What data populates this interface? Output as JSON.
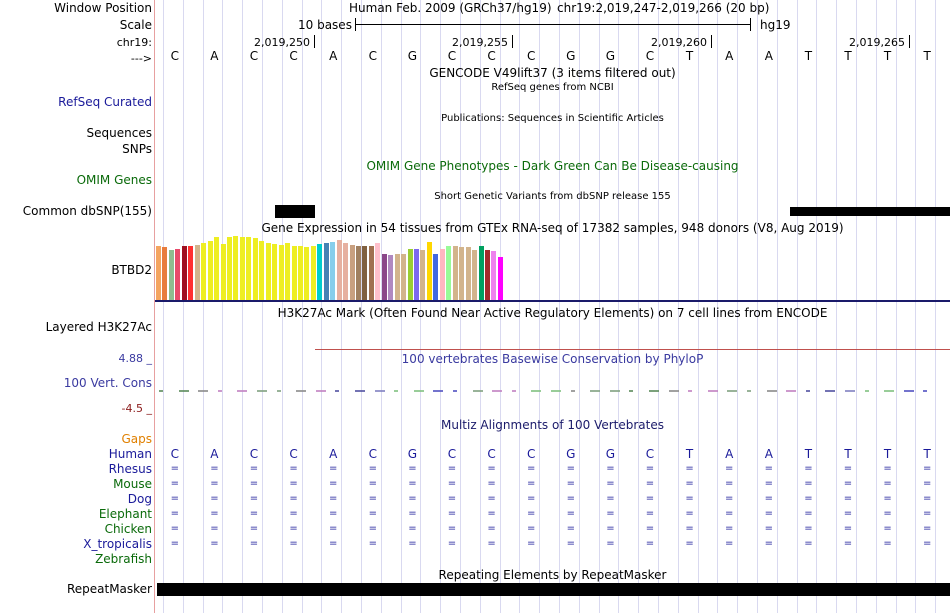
{
  "labels": {
    "window_position": "Window Position",
    "scale": "Scale",
    "chrom": "chr19:",
    "arrow": "--->",
    "refseq": "RefSeq Curated",
    "sequences": "Sequences",
    "snps": "SNPs",
    "omim": "OMIM Genes",
    "common_dbsnp": "Common dbSNP(155)",
    "btbd2": "BTBD2",
    "layered": "Layered H3K27Ac",
    "cons_max": "4.88 _",
    "cons_name": "100 Vert. Cons",
    "cons_min": "-4.5 _",
    "gaps": "Gaps",
    "repeatmasker": "RepeatMasker"
  },
  "header": {
    "assembly": "Human Feb. 2009 (GRCh37/hg19)",
    "position": "chr19:2,019,247-2,019,266 (20 bp)",
    "scale_text": "10 bases",
    "scale_db": "hg19",
    "coords": [
      "2,019,250",
      "2,019,255",
      "2,019,260",
      "2,019,265"
    ]
  },
  "bases": [
    "C",
    "A",
    "C",
    "C",
    "A",
    "C",
    "G",
    "C",
    "C",
    "C",
    "G",
    "G",
    "C",
    "T",
    "A",
    "A",
    "T",
    "T",
    "T",
    "T"
  ],
  "tracks": {
    "gencode": "GENCODE V49lift37 (3 items filtered out)",
    "refseq_desc": "RefSeq genes from NCBI",
    "pubs": "Publications: Sequences in Scientific Articles",
    "omim_desc": "OMIM Gene Phenotypes - Dark Green Can Be Disease-causing",
    "dbsnp_desc": "Short Genetic Variants from dbSNP release 155",
    "gtex": "Gene Expression in 54 tissues from GTEx RNA-seq of 17382 samples, 948 donors (V8, Aug 2019)",
    "h3k27ac": "H3K27Ac Mark (Often Found Near Active Regulatory Elements) on 7 cell lines from ENCODE",
    "phylop": "100 vertebrates Basewise Conservation by PhyloP",
    "multiz": "Multiz Alignments of 100 Vertebrates",
    "repeat": "Repeating Elements by RepeatMasker"
  },
  "species": [
    {
      "name": "Human",
      "color": "#1a1a9a"
    },
    {
      "name": "Rhesus",
      "color": "#1a1a9a"
    },
    {
      "name": "Mouse",
      "color": "#0a6a0a"
    },
    {
      "name": "Dog",
      "color": "#1a1a9a"
    },
    {
      "name": "Elephant",
      "color": "#0a6a0a"
    },
    {
      "name": "Chicken",
      "color": "#0a6a0a"
    },
    {
      "name": "X_tropicalis",
      "color": "#1a1a9a"
    },
    {
      "name": "Zebrafish",
      "color": "#0a6a0a"
    }
  ],
  "gtex_bars": [
    {
      "v": 0.95,
      "c": "#f4a460"
    },
    {
      "v": 0.92,
      "c": "#e87c3e"
    },
    {
      "v": 0.88,
      "c": "#8fbc8f"
    },
    {
      "v": 0.9,
      "c": "#e84a6a"
    },
    {
      "v": 0.95,
      "c": "#a01020"
    },
    {
      "v": 0.95,
      "c": "#ff3030"
    },
    {
      "v": 0.96,
      "c": "#d2b48c"
    },
    {
      "v": 1.0,
      "c": "#eeee22"
    },
    {
      "v": 1.04,
      "c": "#eeee22"
    },
    {
      "v": 1.1,
      "c": "#eeee22"
    },
    {
      "v": 0.98,
      "c": "#eeee22"
    },
    {
      "v": 1.1,
      "c": "#eeee22"
    },
    {
      "v": 1.12,
      "c": "#eeee22"
    },
    {
      "v": 1.1,
      "c": "#eeee22"
    },
    {
      "v": 1.1,
      "c": "#eeee22"
    },
    {
      "v": 1.08,
      "c": "#eeee22"
    },
    {
      "v": 1.04,
      "c": "#eeee22"
    },
    {
      "v": 1.0,
      "c": "#eeee22"
    },
    {
      "v": 0.98,
      "c": "#eeee22"
    },
    {
      "v": 0.96,
      "c": "#eeee22"
    },
    {
      "v": 1.0,
      "c": "#eeee22"
    },
    {
      "v": 0.95,
      "c": "#eeee22"
    },
    {
      "v": 0.94,
      "c": "#eeee22"
    },
    {
      "v": 0.92,
      "c": "#eeee22"
    },
    {
      "v": 0.95,
      "c": "#eeee22"
    },
    {
      "v": 0.98,
      "c": "#00cdcd"
    },
    {
      "v": 1.0,
      "c": "#4682b4"
    },
    {
      "v": 1.02,
      "c": "#87ceeb"
    },
    {
      "v": 1.05,
      "c": "#e6b0a0"
    },
    {
      "v": 1.0,
      "c": "#e6b0a0"
    },
    {
      "v": 0.96,
      "c": "#c8a080"
    },
    {
      "v": 0.95,
      "c": "#a08060"
    },
    {
      "v": 0.95,
      "c": "#806040"
    },
    {
      "v": 0.95,
      "c": "#a07050"
    },
    {
      "v": 1.0,
      "c": "#ffc0cb"
    },
    {
      "v": 0.8,
      "c": "#8b4789"
    },
    {
      "v": 0.78,
      "c": "#b088c0"
    },
    {
      "v": 0.8,
      "c": "#d2b48c"
    },
    {
      "v": 0.8,
      "c": "#d2b48c"
    },
    {
      "v": 0.9,
      "c": "#9acd32"
    },
    {
      "v": 0.9,
      "c": "#7b68ee"
    },
    {
      "v": 0.88,
      "c": "#d2b48c"
    },
    {
      "v": 1.02,
      "c": "#ffd700"
    },
    {
      "v": 0.8,
      "c": "#4169e1"
    },
    {
      "v": 0.9,
      "c": "#ffb6c1"
    },
    {
      "v": 0.95,
      "c": "#98fb98"
    },
    {
      "v": 0.95,
      "c": "#d2b48c"
    },
    {
      "v": 0.92,
      "c": "#d2b48c"
    },
    {
      "v": 0.92,
      "c": "#d2b48c"
    },
    {
      "v": 0.88,
      "c": "#d2b48c"
    },
    {
      "v": 0.95,
      "c": "#00a060"
    },
    {
      "v": 0.88,
      "c": "#a52a2a"
    },
    {
      "v": 0.85,
      "c": "#ee82ee"
    },
    {
      "v": 0.75,
      "c": "#ff00ff"
    }
  ],
  "colors": {
    "label_blue": "#1a1a9a",
    "label_green": "#0a6a0a",
    "gaps": "#e08000",
    "cons_min": "#8b1a1a",
    "cons_name": "#3a3aa0",
    "phylop": "#3a3aa0",
    "gtex_line": "#1a1a6a",
    "h3k27ac_line": "#c0504d"
  }
}
